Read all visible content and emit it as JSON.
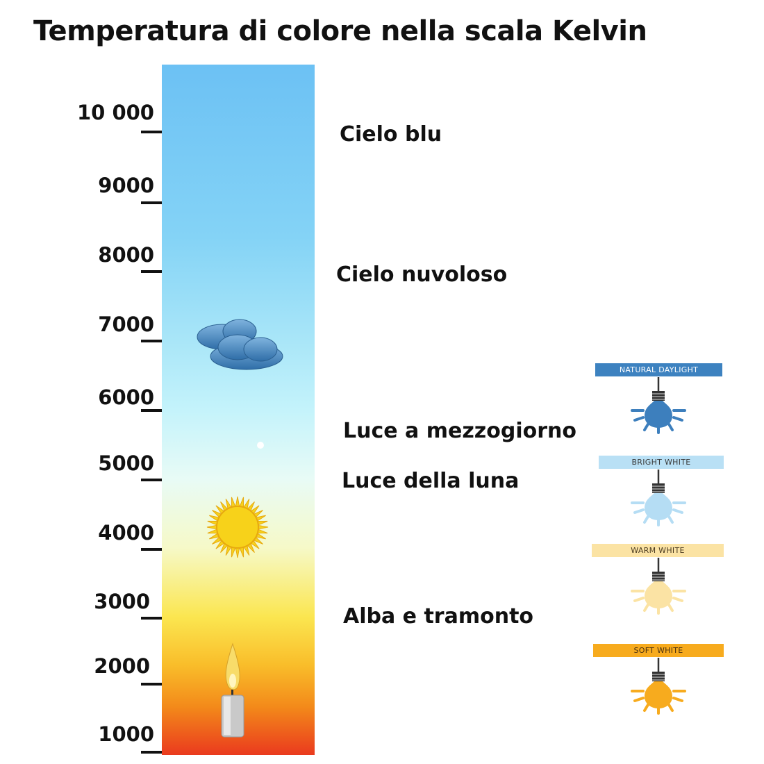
{
  "title": "Temperatura di colore nella scala Kelvin",
  "scale": {
    "ticks": [
      "10 000",
      "9000",
      "8000",
      "7000",
      "6000",
      "5000",
      "4000",
      "3000",
      "2000",
      "1000"
    ]
  },
  "descriptions": [
    "Cielo blu",
    "Cielo nuvoloso",
    "Luce a mezzogiorno",
    "Luce della luna",
    "Alba e tramonto"
  ],
  "bulbs": [
    {
      "label": "NATURAL DAYLIGHT",
      "banner_color": "#3d82c0",
      "text_color": "#ffffff",
      "bulb_color": "#3d7fbd"
    },
    {
      "label": "BRIGHT WHITE",
      "banner_color": "#b9e0f5",
      "text_color": "#3a3a3a",
      "bulb_color": "#b5ddf4"
    },
    {
      "label": "WARM WHITE",
      "banner_color": "#fbe3a4",
      "text_color": "#4a3a20",
      "bulb_color": "#fbe3a4"
    },
    {
      "label": "SOFT WHITE",
      "banner_color": "#f7ab1e",
      "text_color": "#4a3010",
      "bulb_color": "#f7ab1e"
    }
  ],
  "icons": [
    "cloud-icon",
    "sun-icon",
    "candle-icon"
  ]
}
